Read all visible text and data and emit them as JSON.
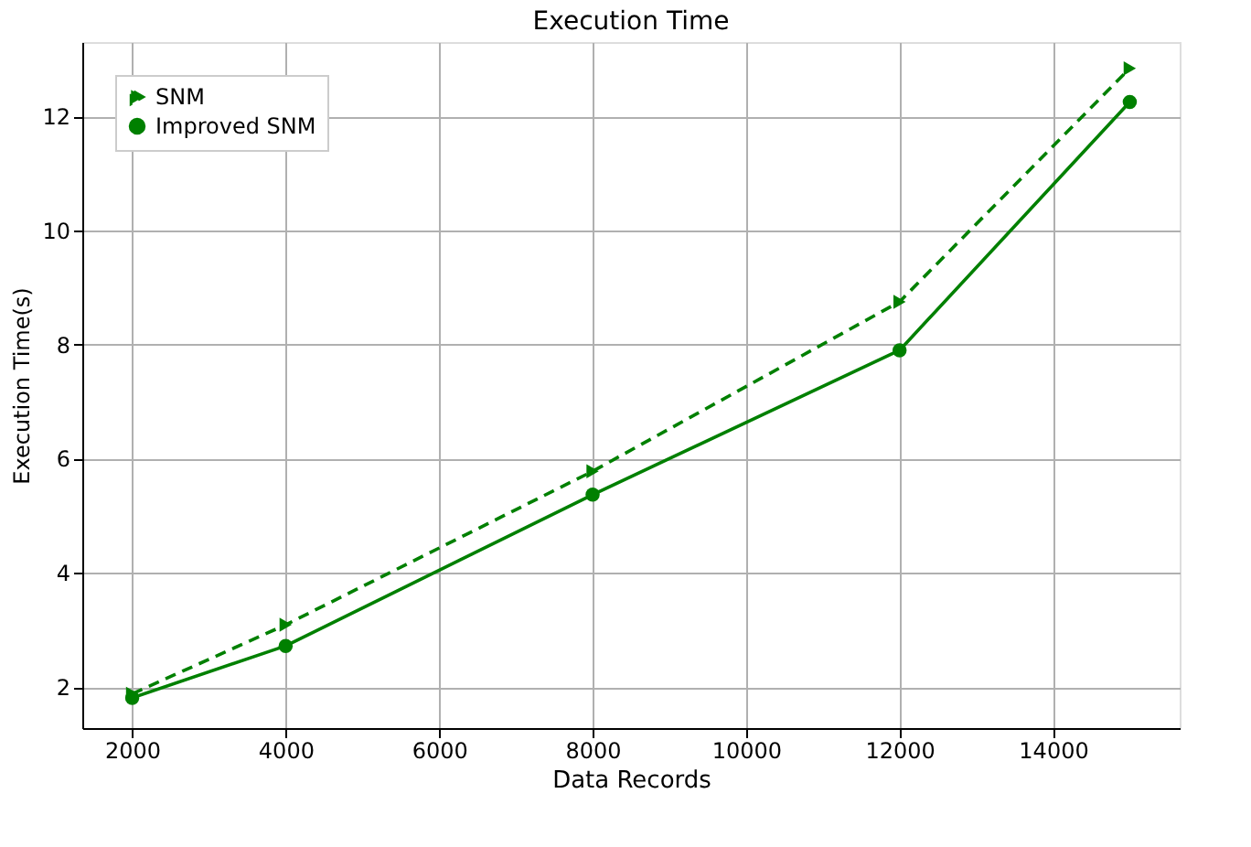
{
  "chart_data": {
    "type": "line",
    "title": "Execution Time",
    "xlabel": "Data Records",
    "ylabel": "Execution Time(s)",
    "x": [
      2000,
      4000,
      8000,
      12000,
      15000
    ],
    "series": [
      {
        "name": "SNM",
        "color": "#008000",
        "values": [
          1.88,
          3.09,
          5.78,
          8.75,
          12.84
        ],
        "marker": "triangle",
        "line_style": "dashed"
      },
      {
        "name": "Improved SNM",
        "color": "#008000",
        "values": [
          1.81,
          2.72,
          5.37,
          7.9,
          12.25
        ],
        "marker": "circle",
        "line_style": "solid"
      }
    ],
    "xlim": [
      1350,
      15650
    ],
    "xticks": [
      2000,
      4000,
      6000,
      8000,
      10000,
      12000,
      14000
    ],
    "ylim": [
      1.28,
      13.3
    ],
    "yticks": [
      2,
      4,
      6,
      8,
      10,
      12
    ],
    "grid": true,
    "legend": "top left"
  }
}
